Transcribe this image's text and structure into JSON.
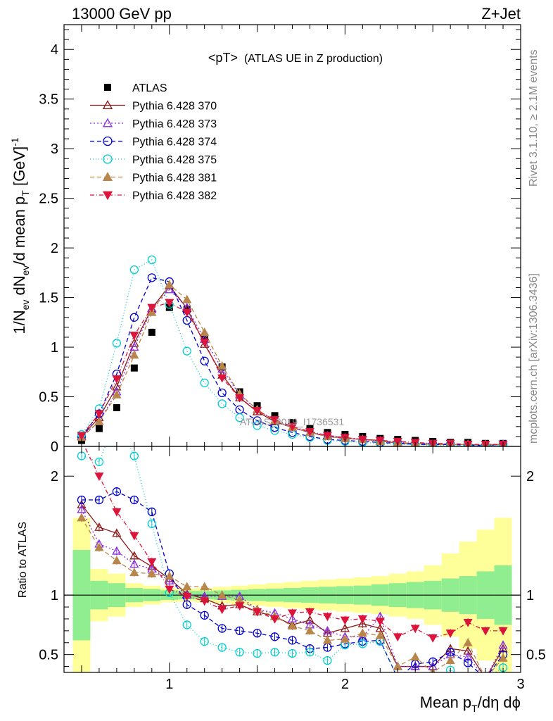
{
  "header": {
    "left": "13000 GeV pp",
    "right": "Z+Jet"
  },
  "side_labels": {
    "rivet": "Rivet 3.1.10, ≥ 2.1M events",
    "mcplots": "mcplots.cern.ch [arXiv:1306.3436]"
  },
  "watermark": "ATLAS_2019_I1736531",
  "chart_data": {
    "type": "scatter",
    "title_main": "<pT>",
    "title_sub": "(ATLAS UE in Z production)",
    "xlabel": "Mean p_T/dη dφ",
    "ylabel_main": "1/N_ev dN_ev/d mean p_T [GeV]^-1",
    "ylabel_ratio": "Ratio to ATLAS",
    "xlim": [
      0.4,
      3.0
    ],
    "ylim_main": [
      0,
      4.25
    ],
    "ylim_ratio": [
      0.35,
      2.25
    ],
    "x_ticks": [
      1,
      2,
      3
    ],
    "y_ticks_main": [
      0,
      0.5,
      1,
      1.5,
      2,
      2.5,
      3,
      3.5,
      4
    ],
    "y_ticks_ratio": [
      0.5,
      1,
      2
    ],
    "legend_position": "top-left",
    "x": [
      0.5,
      0.6,
      0.7,
      0.8,
      0.9,
      1.0,
      1.1,
      1.2,
      1.3,
      1.4,
      1.5,
      1.6,
      1.7,
      1.8,
      1.9,
      2.0,
      2.1,
      2.2,
      2.3,
      2.4,
      2.5,
      2.6,
      2.7,
      2.8,
      2.9
    ],
    "series": [
      {
        "name": "ATLAS",
        "color": "#000000",
        "marker": "square",
        "values": [
          0.06,
          0.18,
          0.39,
          0.79,
          1.15,
          1.4,
          1.38,
          1.08,
          0.8,
          0.55,
          0.41,
          0.31,
          0.24,
          0.18,
          0.14,
          0.12,
          0.1,
          0.08,
          0.07,
          0.06,
          0.05,
          0.04,
          0.04,
          0.03,
          0.03
        ]
      },
      {
        "name": "Pythia 6.428 370",
        "color": "#8b1a1a",
        "marker": "triangle-open",
        "dash": "",
        "values": [
          0.1,
          0.29,
          0.6,
          1.04,
          1.39,
          1.62,
          1.39,
          1.03,
          0.72,
          0.49,
          0.35,
          0.25,
          0.19,
          0.14,
          0.1,
          0.08,
          0.07,
          0.06,
          0.03,
          0.03,
          0.02,
          0.02,
          0.02,
          0.01,
          0.02
        ],
        "ratio": [
          1.76,
          1.57,
          1.52,
          1.33,
          1.24,
          1.14,
          1.01,
          0.97,
          0.91,
          0.92,
          0.86,
          0.82,
          0.75,
          0.79,
          0.68,
          0.72,
          0.76,
          0.72,
          0.4,
          0.4,
          0.4,
          0.55,
          0.53,
          0.3,
          0.55
        ]
      },
      {
        "name": "Pythia 6.428 373",
        "color": "#8a2be2",
        "marker": "triangle-open",
        "dash": "2,3",
        "values": [
          0.1,
          0.25,
          0.55,
          1.0,
          1.38,
          1.58,
          1.4,
          1.08,
          0.78,
          0.52,
          0.37,
          0.26,
          0.19,
          0.14,
          0.11,
          0.09,
          0.07,
          0.06,
          0.04,
          0.03,
          0.03,
          0.02,
          0.02,
          0.01,
          0.02
        ],
        "ratio": [
          1.72,
          1.43,
          1.37,
          1.26,
          1.22,
          1.12,
          1.0,
          0.99,
          0.99,
          0.99,
          0.88,
          0.85,
          0.8,
          0.75,
          0.7,
          0.65,
          0.65,
          0.82,
          0.4,
          0.4,
          0.4,
          0.5,
          0.48,
          0.3,
          0.58
        ]
      },
      {
        "name": "Pythia 6.428 374",
        "color": "#0000cc",
        "marker": "circle-open",
        "dash": "6,4",
        "values": [
          0.1,
          0.33,
          0.73,
          1.3,
          1.7,
          1.66,
          1.27,
          0.86,
          0.54,
          0.37,
          0.26,
          0.19,
          0.14,
          0.1,
          0.07,
          0.06,
          0.05,
          0.04,
          0.03,
          0.02,
          0.02,
          0.02,
          0.01,
          0.01,
          0.02
        ],
        "ratio": [
          1.8,
          1.8,
          1.87,
          1.8,
          1.7,
          1.18,
          0.92,
          0.83,
          0.72,
          0.7,
          0.68,
          0.65,
          0.62,
          0.55,
          0.56,
          0.59,
          0.61,
          0.62,
          0.3,
          0.42,
          0.44,
          0.52,
          0.43,
          0.3,
          0.5
        ]
      },
      {
        "name": "Pythia 6.428 375",
        "color": "#00ced1",
        "marker": "circle-open",
        "dash": "1,3",
        "values": [
          0.12,
          0.38,
          1.04,
          1.78,
          1.88,
          1.43,
          0.96,
          0.64,
          0.43,
          0.29,
          0.21,
          0.16,
          0.12,
          0.09,
          0.06,
          0.05,
          0.04,
          0.03,
          0.02,
          0.02,
          0.01,
          0.01,
          0.01,
          0.01,
          0.01
        ],
        "ratio": [
          2.17,
          2.12,
          2.5,
          2.17,
          1.6,
          1.02,
          0.75,
          0.61,
          0.56,
          0.52,
          0.51,
          0.52,
          0.51,
          0.52,
          0.45,
          0.58,
          0.59,
          0.61,
          0.3,
          0.3,
          0.3,
          0.37,
          0.3,
          0.3,
          0.39
        ]
      },
      {
        "name": "Pythia 6.428 381",
        "color": "#b8864b",
        "marker": "triangle-filled",
        "dash": "6,4",
        "values": [
          0.09,
          0.25,
          0.52,
          0.92,
          1.35,
          1.63,
          1.48,
          1.15,
          0.81,
          0.53,
          0.37,
          0.26,
          0.19,
          0.14,
          0.1,
          0.08,
          0.07,
          0.05,
          0.04,
          0.03,
          0.02,
          0.02,
          0.02,
          0.02,
          0.02
        ],
        "ratio": [
          1.65,
          1.4,
          1.29,
          1.19,
          1.18,
          1.16,
          1.07,
          1.07,
          1.0,
          0.96,
          0.88,
          0.82,
          0.74,
          0.7,
          0.62,
          0.63,
          0.68,
          0.66,
          0.4,
          0.48,
          0.35,
          0.45,
          0.6,
          0.3,
          0.47
        ]
      },
      {
        "name": "Pythia 6.428 382",
        "color": "#dc143c",
        "marker": "triangle-down-filled",
        "dash": "6,3,1,3",
        "values": [
          0.11,
          0.33,
          0.68,
          1.12,
          1.4,
          1.45,
          1.35,
          1.05,
          0.69,
          0.49,
          0.36,
          0.27,
          0.2,
          0.15,
          0.11,
          0.09,
          0.07,
          0.06,
          0.05,
          0.04,
          0.03,
          0.03,
          0.02,
          0.02,
          0.02
        ],
        "ratio": [
          2.3,
          2.0,
          1.7,
          1.5,
          1.28,
          1.05,
          0.99,
          0.95,
          0.88,
          0.91,
          0.86,
          0.8,
          0.85,
          0.86,
          0.82,
          0.79,
          0.8,
          0.78,
          0.65,
          0.72,
          0.64,
          0.68,
          0.77,
          0.7,
          0.7
        ]
      }
    ],
    "uncertainty_band": {
      "inner_color": "#90ee90",
      "outer_color": "#ffff99",
      "inner_half": [
        0.38,
        0.12,
        0.1,
        0.06,
        0.05,
        0.04,
        0.035,
        0.035,
        0.04,
        0.045,
        0.05,
        0.055,
        0.06,
        0.065,
        0.07,
        0.075,
        0.08,
        0.09,
        0.1,
        0.11,
        0.12,
        0.14,
        0.16,
        0.2,
        0.25
      ],
      "outer_half": [
        0.65,
        0.22,
        0.18,
        0.1,
        0.08,
        0.06,
        0.055,
        0.06,
        0.07,
        0.08,
        0.09,
        0.1,
        0.11,
        0.12,
        0.13,
        0.14,
        0.15,
        0.16,
        0.18,
        0.2,
        0.25,
        0.35,
        0.45,
        0.55,
        0.65
      ]
    }
  }
}
